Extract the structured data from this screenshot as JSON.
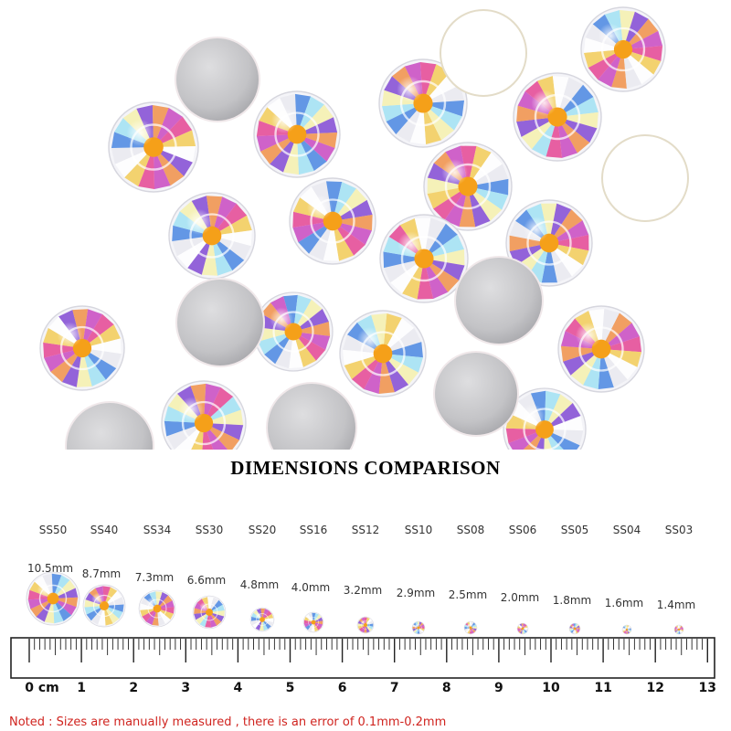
{
  "title": "DIMENSIONS COMPARISON",
  "sizes": [
    {
      "code": "SS50",
      "mm": "10.5mm"
    },
    {
      "code": "SS40",
      "mm": "8.7mm"
    },
    {
      "code": "SS34",
      "mm": "7.3mm"
    },
    {
      "code": "SS30",
      "mm": "6.6mm"
    },
    {
      "code": "SS20",
      "mm": "4.8mm"
    },
    {
      "code": "SS16",
      "mm": "4.0mm"
    },
    {
      "code": "SS12",
      "mm": "3.2mm"
    },
    {
      "code": "SS10",
      "mm": "2.9mm"
    },
    {
      "code": "SS08",
      "mm": "2.5mm"
    },
    {
      "code": "SS06",
      "mm": "2.0mm"
    },
    {
      "code": "SS05",
      "mm": "1.8mm"
    },
    {
      "code": "SS04",
      "mm": "1.6mm"
    },
    {
      "code": "SS03",
      "mm": "1.4mm"
    }
  ],
  "ruler": {
    "labels": [
      "0 cm",
      "1",
      "2",
      "3",
      "4",
      "5",
      "6",
      "7",
      "8",
      "9",
      "10",
      "11",
      "12",
      "13"
    ]
  },
  "note": "Noted : Sizes are manually measured , there is an error of 0.1mm-0.2mm",
  "colors": {
    "note": "#d0241f",
    "silver": "#c4c4c6",
    "crystal_center": "#f5a019"
  }
}
